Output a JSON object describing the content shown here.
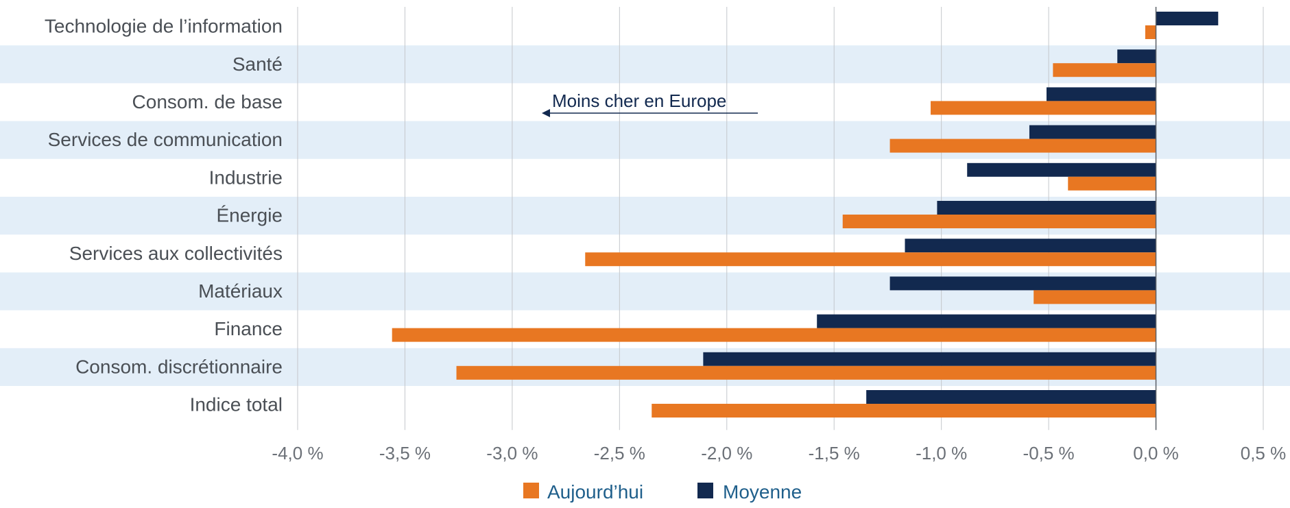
{
  "chart_data": {
    "type": "bar",
    "orientation": "horizontal",
    "categories": [
      "Technologie de l’information",
      "Santé",
      "Consom. de base",
      "Services de communication",
      "Industrie",
      "Énergie",
      "Services aux collectivités",
      "Matériaux",
      "Finance",
      "Consom. discrétionnaire",
      "Indice total"
    ],
    "series": [
      {
        "name": "Moyenne",
        "color": "#12294f",
        "values": [
          0.29,
          -0.18,
          -0.51,
          -0.59,
          -0.88,
          -1.02,
          -1.17,
          -1.24,
          -1.58,
          -2.11,
          -1.35
        ]
      },
      {
        "name": "Aujourd’hui",
        "color": "#e87722",
        "values": [
          -0.05,
          -0.48,
          -1.05,
          -1.24,
          -0.41,
          -1.46,
          -2.66,
          -0.57,
          -3.56,
          -3.26,
          -2.35
        ]
      }
    ],
    "xlim": [
      -4.0,
      0.5
    ],
    "ticks": [
      -4.0,
      -3.5,
      -3.0,
      -2.5,
      -2.0,
      -1.5,
      -1.0,
      -0.5,
      0.0,
      0.5
    ],
    "tick_labels": [
      "-4,0 %",
      "-3,5 %",
      "-3,0 %",
      "-2,5 %",
      "-2,0 %",
      "-1,5 %",
      "-1,0 %",
      "-0,5 %",
      "0,0 %",
      "0,5 %"
    ],
    "grid": true,
    "row_band_color": "#e3eef8",
    "annotation": {
      "text": "Moins cher en Europe",
      "arrow": "left"
    },
    "legend": {
      "placement": "bottom-center",
      "items": [
        {
          "label": "Aujourd’hui",
          "color": "#e87722"
        },
        {
          "label": "Moyenne",
          "color": "#12294f"
        }
      ]
    }
  }
}
